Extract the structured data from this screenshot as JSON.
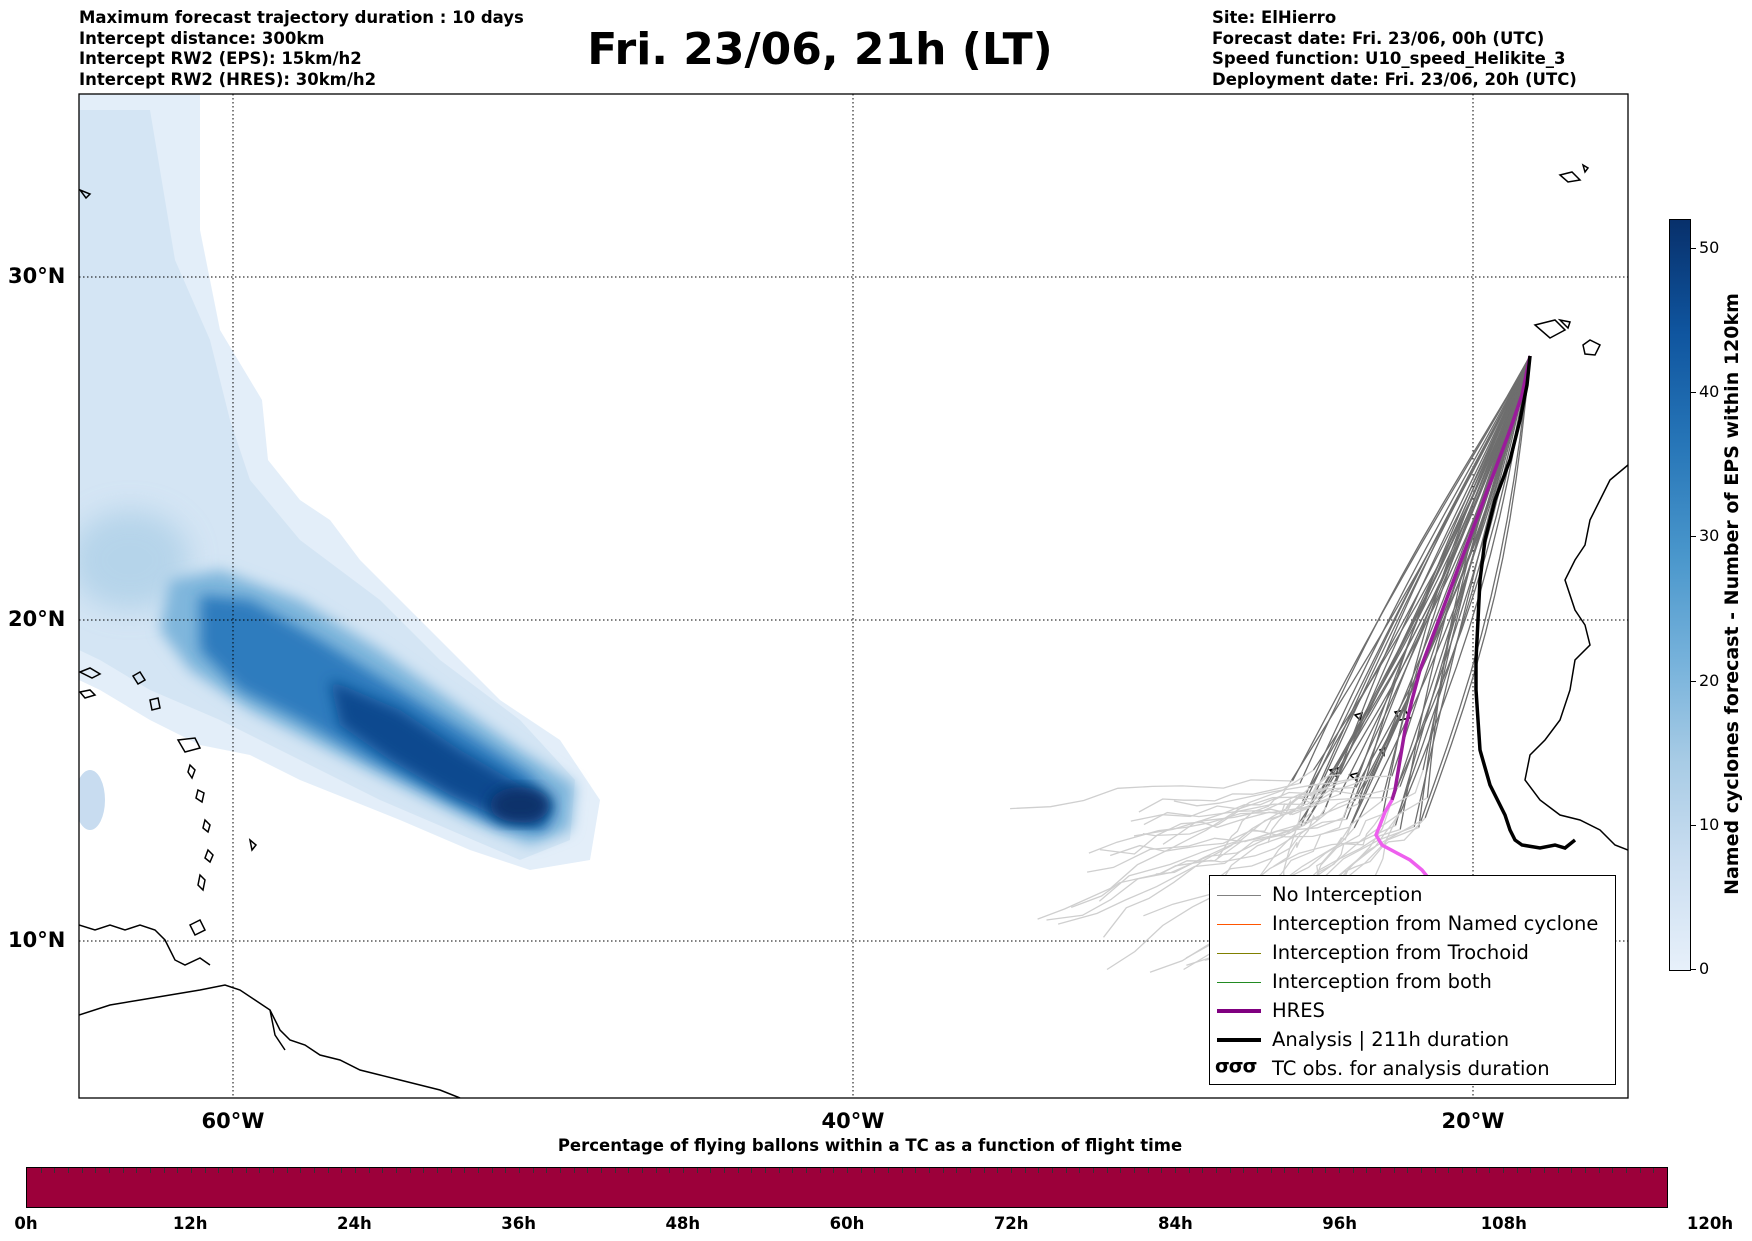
{
  "header": {
    "left_lines": [
      "Maximum forecast trajectory duration : 10 days",
      "Intercept distance: 300km",
      "Intercept RW2 (EPS):  15km/h2",
      "Intercept RW2 (HRES): 30km/h2"
    ],
    "title": "Fri. 23/06, 21h (LT)",
    "right_lines": [
      "Site: ElHierro",
      "Forecast date: Fri. 23/06, 00h (UTC)",
      "Speed function: U10_speed_Helikite_3",
      "Deployment date: Fri. 23/06, 20h (UTC)"
    ]
  },
  "map": {
    "lat_labels": [
      "30°N",
      "20°N",
      "10°N"
    ],
    "lon_labels": [
      "60°W",
      "40°W",
      "20°W"
    ]
  },
  "legend": {
    "items": [
      {
        "label": "No Interception",
        "color": "#808080",
        "style": "thin"
      },
      {
        "label": "Interception from Named cyclone",
        "color": "#ff5500",
        "style": "thin"
      },
      {
        "label": "Interception from Trochoid",
        "color": "#808000",
        "style": "thin"
      },
      {
        "label": "Interception from both",
        "color": "#228b22",
        "style": "thin"
      },
      {
        "label": "HRES",
        "color": "#800080",
        "style": "thick"
      },
      {
        "label": "Analysis | 211h duration",
        "color": "#000000",
        "style": "thick"
      },
      {
        "label": "TC obs. for analysis duration",
        "symbol": "σσσ",
        "style": "symbol"
      }
    ]
  },
  "colorbar": {
    "title": "Named cyclones forecast - Number of EPS within 120km",
    "ticks": [
      "0",
      "10",
      "20",
      "30",
      "40",
      "50"
    ],
    "min": 0,
    "max": 52,
    "colors": [
      "#e7f0fa",
      "#c9ddf0",
      "#a7cbe5",
      "#7ab4dc",
      "#4a97cc",
      "#2776b8",
      "#0f559f",
      "#08306b"
    ]
  },
  "flight_bar": {
    "title": "Percentage of flying ballons within a TC as a function of flight time",
    "labels": [
      "0h",
      "12h",
      "24h",
      "36h",
      "48h",
      "60h",
      "72h",
      "84h",
      "96h",
      "108h",
      "120h"
    ],
    "color": "#9c003a"
  }
}
